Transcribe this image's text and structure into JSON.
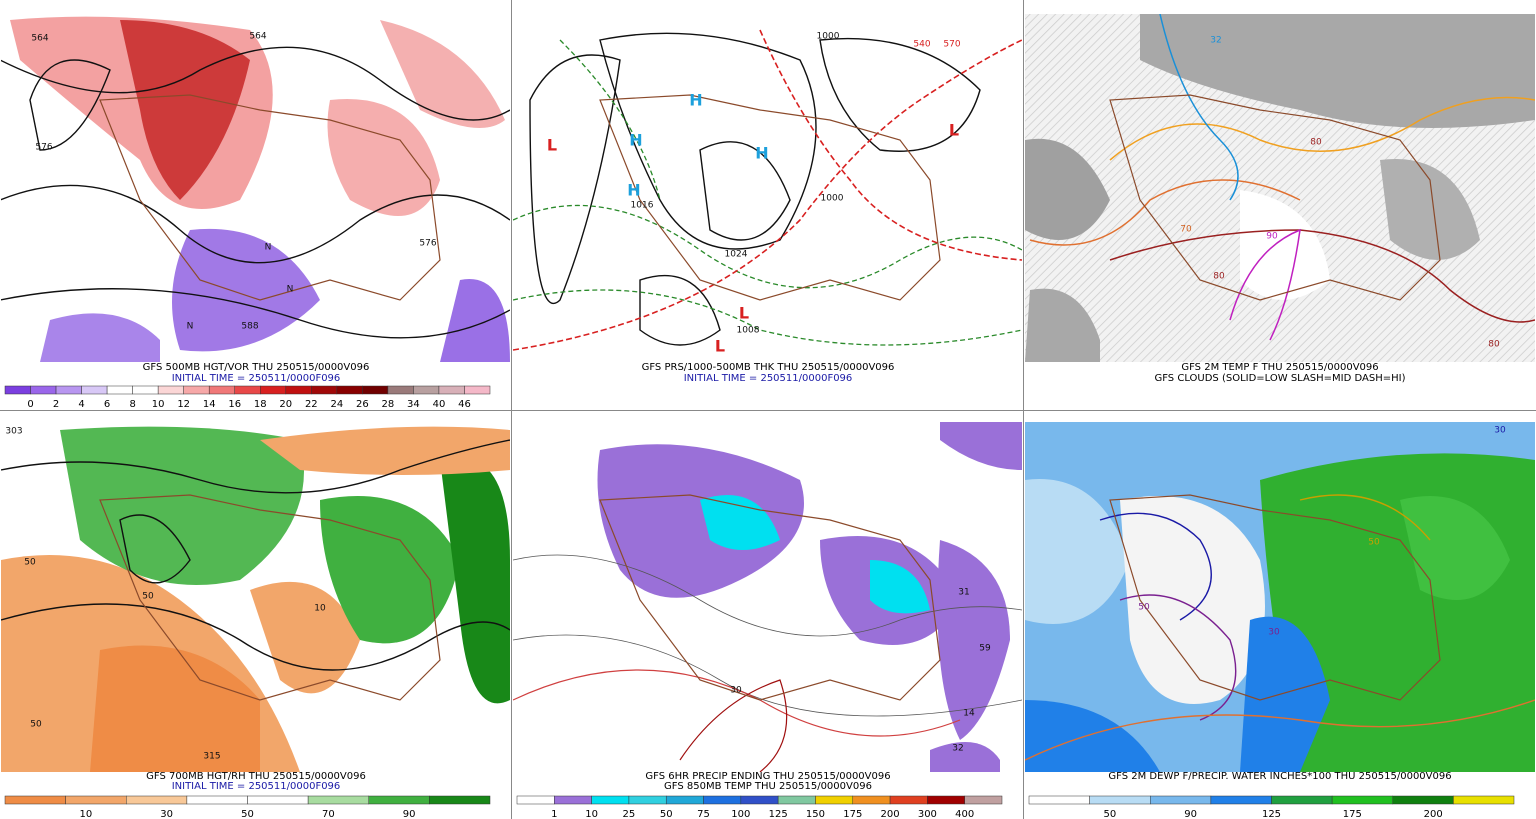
{
  "panels": [
    {
      "caption": [
        {
          "text": "GFS 500MB HGT/VOR THU 250515/0000V096",
          "color": "#000000"
        },
        {
          "text": "INITIAL TIME = 250511/0000F096",
          "color": "#1a1aa6"
        }
      ],
      "colorbar": {
        "colors": [
          "#7b3fe0",
          "#9a66ea",
          "#b896f0",
          "#d8c8f6",
          "#ffffff",
          "#ffffff",
          "#fbd6d6",
          "#f6a8a8",
          "#f07878",
          "#e84848",
          "#d82020",
          "#c01010",
          "#a00808",
          "#880000",
          "#700000",
          "#9a7a7a",
          "#b8a0a0",
          "#d8b0b8",
          "#f4b8c8"
        ],
        "labels": [
          "0",
          "2",
          "4",
          "6",
          "8",
          "10",
          "12",
          "14",
          "16",
          "18",
          "20",
          "22",
          "24",
          "26",
          "28",
          "34",
          "40",
          "46"
        ]
      },
      "map_labels": [
        {
          "text": "564",
          "color": "#111111"
        },
        {
          "text": "576",
          "color": "#111111"
        },
        {
          "text": "588",
          "color": "#111111"
        },
        {
          "text": "576",
          "color": "#111111"
        },
        {
          "text": "564",
          "color": "#111111"
        },
        {
          "text": "N",
          "color": "#111111"
        },
        {
          "text": "N",
          "color": "#111111"
        },
        {
          "text": "N",
          "color": "#111111"
        }
      ]
    },
    {
      "caption": [
        {
          "text": "GFS PRS/1000-500MB THK THU 250515/0000V096",
          "color": "#000000"
        },
        {
          "text": "INITIAL TIME = 250511/0000F096",
          "color": "#1a1aa6"
        }
      ],
      "colorbar": null,
      "map_labels": [
        {
          "text": "H",
          "color": "#1ca0dc"
        },
        {
          "text": "H",
          "color": "#1ca0dc"
        },
        {
          "text": "H",
          "color": "#1ca0dc"
        },
        {
          "text": "L",
          "color": "#d82020"
        },
        {
          "text": "L",
          "color": "#d82020"
        },
        {
          "text": "L",
          "color": "#d82020"
        },
        {
          "text": "L",
          "color": "#d82020"
        },
        {
          "text": "H",
          "color": "#1ca0dc"
        },
        {
          "text": "1016",
          "color": "#111111"
        },
        {
          "text": "1024",
          "color": "#111111"
        },
        {
          "text": "1008",
          "color": "#111111"
        },
        {
          "text": "1000",
          "color": "#111111"
        },
        {
          "text": "1000",
          "color": "#111111"
        },
        {
          "text": "540",
          "color": "#d82020"
        },
        {
          "text": "570",
          "color": "#d82020"
        }
      ]
    },
    {
      "caption": [
        {
          "text": "GFS 2M TEMP F THU 250515/0000V096",
          "color": "#000000"
        },
        {
          "text": "GFS CLOUDS (SOLID=LOW SLASH=MID DASH=HI)",
          "color": "#000000"
        }
      ],
      "colorbar": null,
      "map_labels": [
        {
          "text": "32",
          "color": "#1a90d8"
        },
        {
          "text": "80",
          "color": "#9a2020"
        },
        {
          "text": "70",
          "color": "#d06020"
        },
        {
          "text": "80",
          "color": "#9a2020"
        },
        {
          "text": "90",
          "color": "#c020c0"
        },
        {
          "text": "80",
          "color": "#9a2020"
        }
      ]
    },
    {
      "caption": [
        {
          "text": "GFS 700MB HGT/RH THU 250515/0000V096",
          "color": "#000000"
        },
        {
          "text": "INITIAL TIME = 250511/0000F096",
          "color": "#1a1aa6"
        }
      ],
      "colorbar": {
        "colors": [
          "#ef8c46",
          "#f2a66a",
          "#f8c898",
          "#ffffff",
          "#ffffff",
          "#a8dca0",
          "#40b040",
          "#188818"
        ],
        "labels": [
          "10",
          "30",
          "50",
          "70",
          "90"
        ]
      },
      "map_labels": [
        {
          "text": "50",
          "color": "#111111"
        },
        {
          "text": "50",
          "color": "#111111"
        },
        {
          "text": "315",
          "color": "#111111"
        },
        {
          "text": "303",
          "color": "#111111"
        },
        {
          "text": "50",
          "color": "#111111"
        },
        {
          "text": "10",
          "color": "#111111"
        }
      ]
    },
    {
      "caption": [
        {
          "text": "GFS 6HR PRECIP ENDING THU 250515/0000V096",
          "color": "#000000"
        },
        {
          "text": "GFS 850MB TEMP THU 250515/0000V096",
          "color": "#000000"
        }
      ],
      "colorbar": {
        "colors": [
          "#ffffff",
          "#9a70d8",
          "#00e0f0",
          "#30d0e0",
          "#20a8d8",
          "#1e70e0",
          "#3050c8",
          "#80c8a0",
          "#f0d000",
          "#f09020",
          "#e04020",
          "#a00000",
          "#c0a0a0"
        ],
        "labels": [
          "1",
          "10",
          "25",
          "50",
          "75",
          "100",
          "125",
          "150",
          "175",
          "200",
          "300",
          "400"
        ]
      },
      "map_labels": [
        {
          "text": "31",
          "color": "#111111"
        },
        {
          "text": "59",
          "color": "#111111"
        },
        {
          "text": "14",
          "color": "#111111"
        },
        {
          "text": "32",
          "color": "#111111"
        },
        {
          "text": "30",
          "color": "#111111"
        }
      ]
    },
    {
      "caption": [
        {
          "text": "GFS 2M DEWP F/PRECIP. WATER INCHES*100 THU 250515/0000V096",
          "color": "#000000"
        }
      ],
      "colorbar": {
        "colors": [
          "#ffffff",
          "#b8dcf4",
          "#78b8ec",
          "#2080e8",
          "#20a040",
          "#20c020",
          "#108010",
          "#e8e000"
        ],
        "labels": [
          "50",
          "90",
          "125",
          "175",
          "200"
        ]
      },
      "map_labels": [
        {
          "text": "30",
          "color": "#1a1aa6"
        },
        {
          "text": "50",
          "color": "#c8a000"
        },
        {
          "text": "50",
          "color": "#7a2090"
        },
        {
          "text": "30",
          "color": "#7a2090"
        }
      ]
    }
  ]
}
